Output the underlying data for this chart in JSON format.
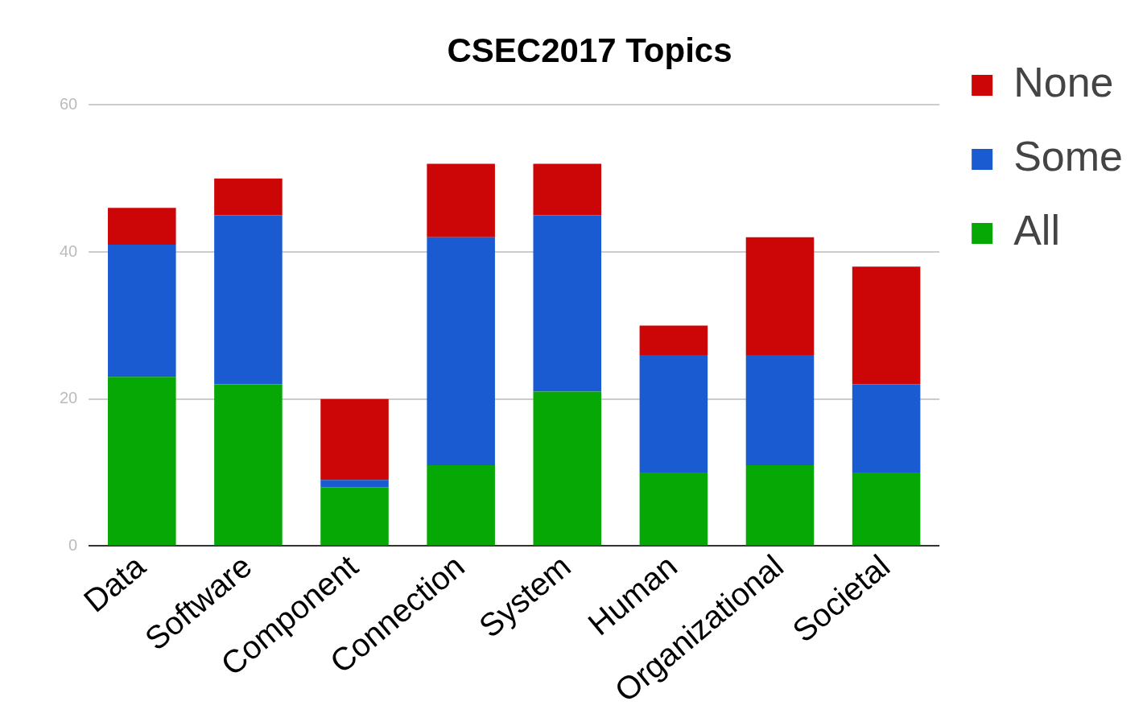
{
  "chart_data": {
    "type": "bar",
    "title": "CSEC2017 Topics",
    "categories": [
      "Data",
      "Software",
      "Component",
      "Connection",
      "System",
      "Human",
      "Organizational",
      "Societal"
    ],
    "stacked": true,
    "ylim": [
      0,
      60
    ],
    "yticks": [
      0,
      20,
      40,
      60
    ],
    "grid": "y",
    "legend": "top right",
    "series": [
      {
        "name": "All",
        "color": "#06a806",
        "values": [
          23,
          22,
          8,
          11,
          21,
          10,
          11,
          10
        ]
      },
      {
        "name": "Some",
        "color": "#1a5bd1",
        "values": [
          18,
          23,
          1,
          31,
          24,
          16,
          15,
          12
        ]
      },
      {
        "name": "None",
        "color": "#cc0606",
        "values": [
          5,
          5,
          11,
          10,
          7,
          4,
          16,
          16
        ]
      }
    ]
  }
}
